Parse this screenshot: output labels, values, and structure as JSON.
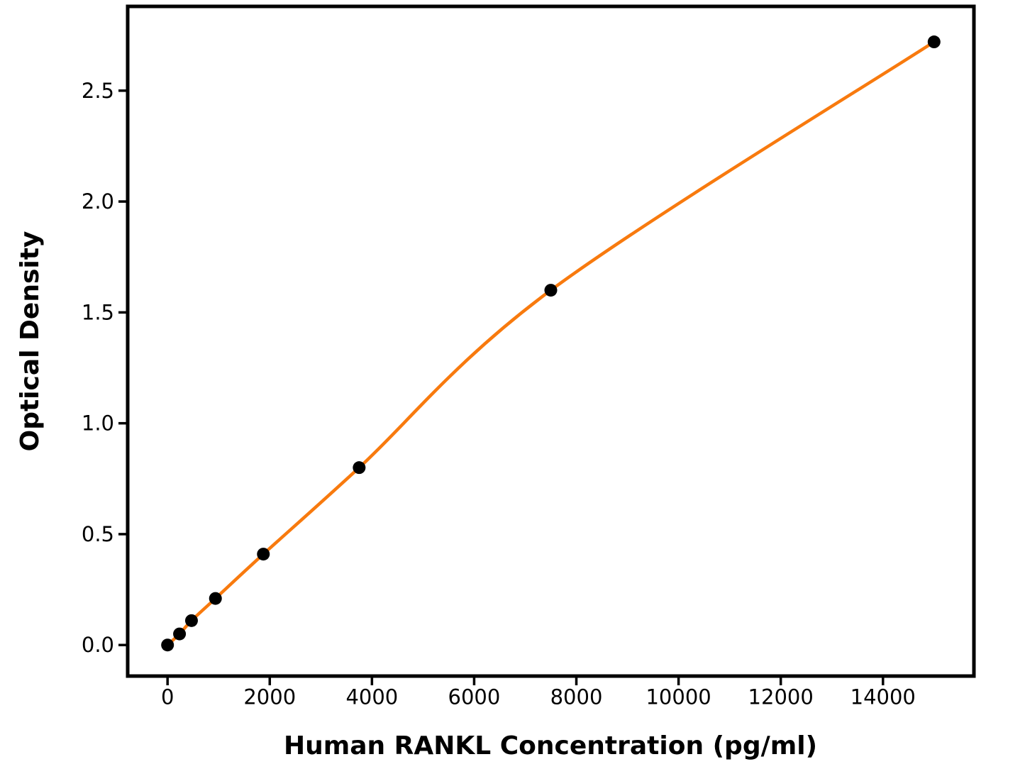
{
  "chart_data": {
    "type": "scatter",
    "title": "",
    "xlabel": "Human RANKL Concentration (pg/ml)",
    "ylabel": "Optical Density",
    "x": [
      0,
      234.4,
      468.8,
      937.5,
      1875,
      3750,
      7500,
      15000
    ],
    "y": [
      0.0,
      0.05,
      0.11,
      0.21,
      0.41,
      0.8,
      1.6,
      2.72
    ],
    "fit_curve": true,
    "xlim": [
      -780,
      15780
    ],
    "ylim": [
      -0.14,
      2.88
    ],
    "x_ticks": [
      0,
      2000,
      4000,
      6000,
      8000,
      10000,
      12000,
      14000
    ],
    "x_tick_labels": [
      "0",
      "2000",
      "4000",
      "6000",
      "8000",
      "10000",
      "12000",
      "14000"
    ],
    "y_ticks": [
      0.0,
      0.5,
      1.0,
      1.5,
      2.0,
      2.5
    ],
    "y_tick_labels": [
      "0.0",
      "0.5",
      "1.0",
      "1.5",
      "2.0",
      "2.5"
    ],
    "grid": false,
    "legend": null,
    "colors": {
      "curve": "#F87A0E",
      "marker": "#000000",
      "axis": "#000000",
      "background": "#ffffff"
    }
  }
}
